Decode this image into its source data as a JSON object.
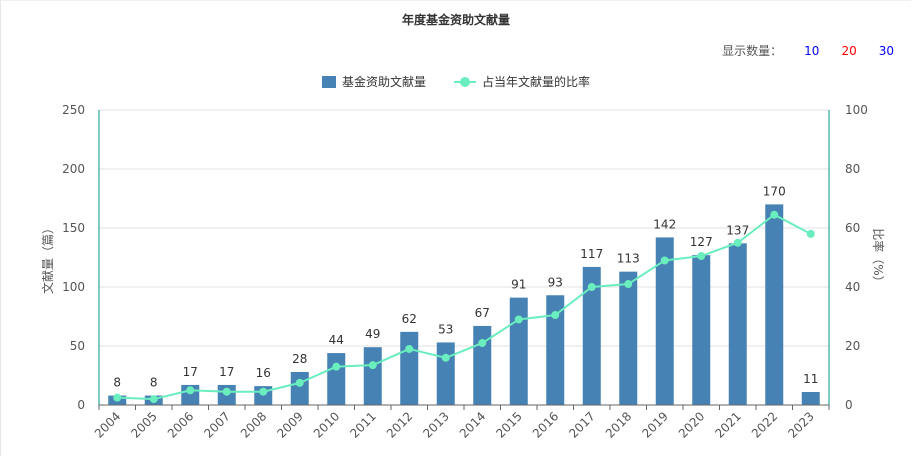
{
  "chart_data": {
    "type": "bar",
    "title": "年度基金资助文献量",
    "categories": [
      "2004",
      "2005",
      "2006",
      "2007",
      "2008",
      "2009",
      "2010",
      "2011",
      "2012",
      "2013",
      "2014",
      "2015",
      "2016",
      "2017",
      "2018",
      "2019",
      "2020",
      "2021",
      "2022",
      "2023"
    ],
    "series": [
      {
        "name": "基金资助文献量",
        "type": "bar",
        "axis": "left",
        "values": [
          8,
          8,
          17,
          17,
          16,
          28,
          44,
          49,
          62,
          53,
          67,
          91,
          93,
          117,
          113,
          142,
          127,
          137,
          170,
          11
        ]
      },
      {
        "name": "占当年文献量的比率",
        "type": "line",
        "axis": "right",
        "values": [
          2.5,
          2,
          5,
          4.5,
          4.5,
          7.5,
          13,
          13.5,
          19,
          16,
          21,
          29,
          30.5,
          40,
          41,
          49,
          50.5,
          55,
          64.5,
          58
        ]
      }
    ],
    "ylabel": "文献量（篇）",
    "y2label": "比率（%）",
    "ylim": [
      0,
      250
    ],
    "y2lim": [
      0,
      100
    ],
    "yticks": [
      0,
      50,
      100,
      150,
      200,
      250
    ],
    "y2ticks": [
      0,
      20,
      40,
      60,
      80,
      100
    ],
    "grid": true,
    "legend": "top-center",
    "colors": {
      "bar": "#4682b4",
      "line": "#6aeebd",
      "axis": "#009688"
    }
  },
  "display_count": {
    "label": "显示数量：",
    "options": [
      {
        "text": "10",
        "color": "#0000ff"
      },
      {
        "text": "20",
        "color": "#ff0000"
      },
      {
        "text": "30",
        "color": "#0000ff"
      }
    ]
  }
}
